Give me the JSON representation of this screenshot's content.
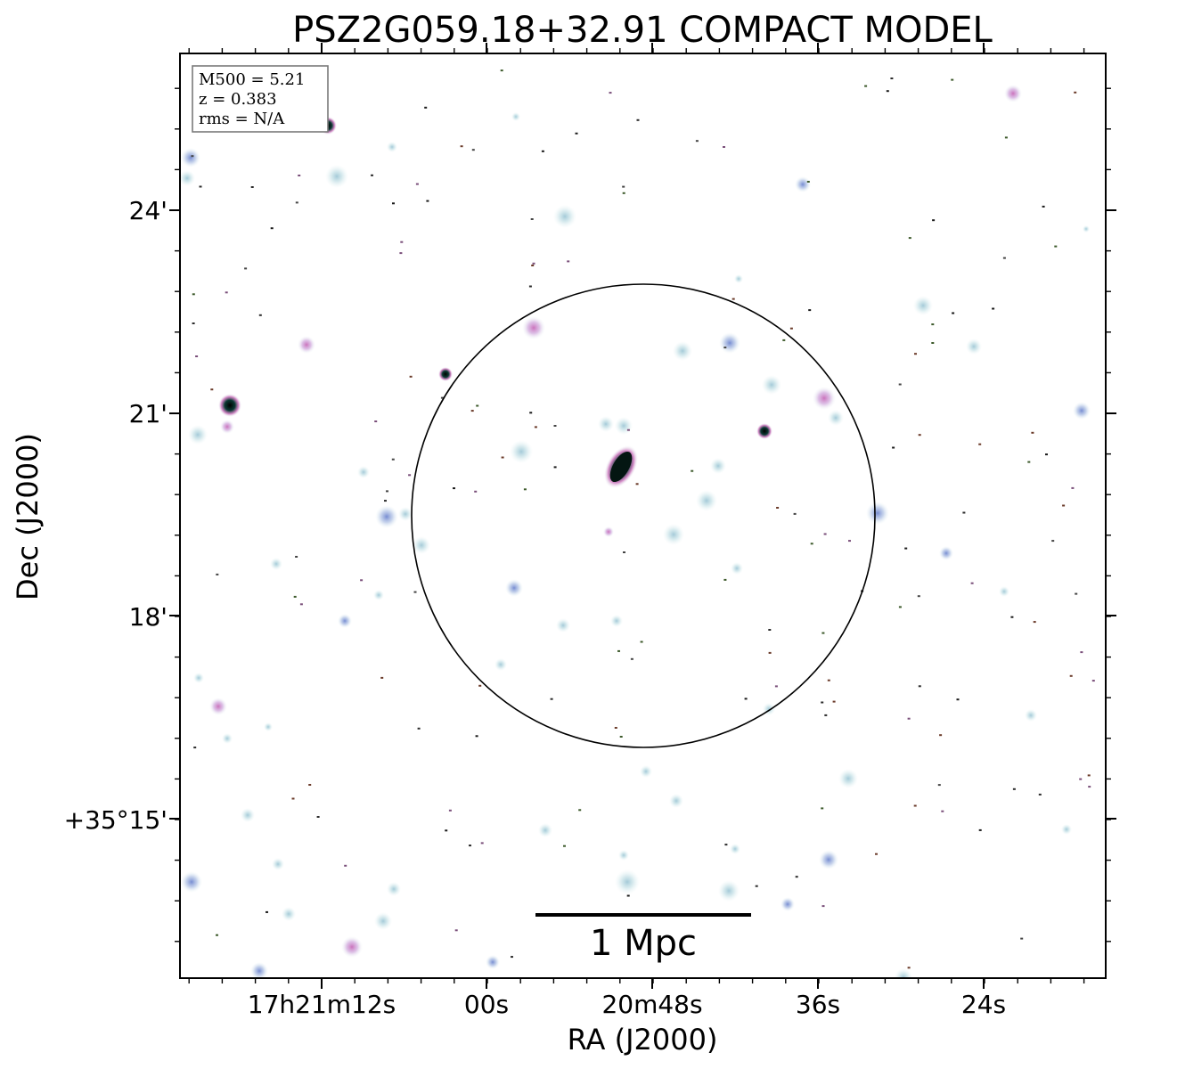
{
  "title": "PSZ2G059.18+32.91 COMPACT MODEL",
  "axes": {
    "xlabel": "RA (J2000)",
    "ylabel": "Dec (J2000)",
    "x_ticks": [
      "17h21m12s",
      "00s",
      "20m48s",
      "36s",
      "24s"
    ],
    "y_ticks": [
      "24'",
      "21'",
      "18'",
      "+35°15'"
    ]
  },
  "info_box": {
    "lines": [
      "M500 = 5.21",
      "z = 0.383",
      "rms = N/A"
    ]
  },
  "scale_bar": {
    "label": "1 Mpc"
  },
  "colors": {
    "frame": "#000000",
    "source_halo": "#cfe6ea",
    "source_core_blue": "#9fb4de",
    "source_core_pink": "#d88fc8",
    "source_dark": "#0b2a26",
    "box_border": "#7a7a7a"
  }
}
